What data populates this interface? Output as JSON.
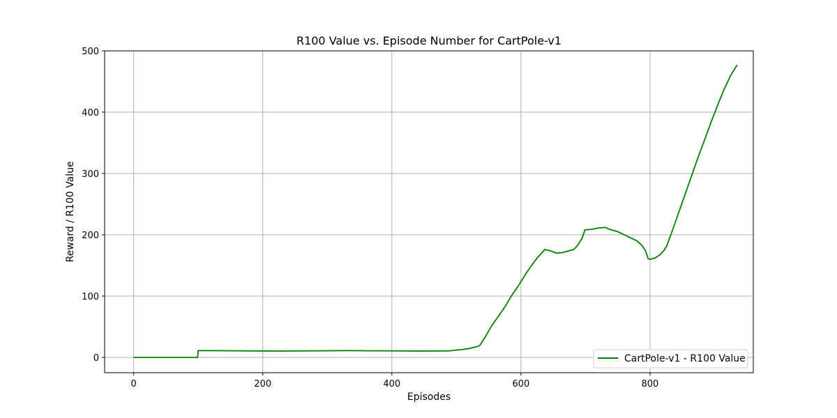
{
  "chart_data": {
    "type": "line",
    "title": "R100 Value vs. Episode Number for CartPole-v1",
    "xlabel": "Episodes",
    "ylabel": "Reward / R100 Value",
    "xlim": [
      -45,
      960
    ],
    "ylim": [
      -25,
      500
    ],
    "xticks": [
      0,
      200,
      400,
      600,
      800
    ],
    "yticks": [
      0,
      100,
      200,
      300,
      400,
      500
    ],
    "grid": true,
    "legend_position": "lower-right",
    "series": [
      {
        "name": "CartPole-v1 - R100 Value",
        "color": "#008000",
        "points": [
          [
            0,
            0
          ],
          [
            50,
            0
          ],
          [
            99,
            0
          ],
          [
            100,
            11
          ],
          [
            120,
            11
          ],
          [
            150,
            10.8
          ],
          [
            180,
            10.6
          ],
          [
            200,
            10.5
          ],
          [
            230,
            10.3
          ],
          [
            260,
            10.6
          ],
          [
            300,
            10.8
          ],
          [
            320,
            11
          ],
          [
            340,
            11
          ],
          [
            360,
            10.8
          ],
          [
            400,
            10.7
          ],
          [
            430,
            10.4
          ],
          [
            460,
            10.5
          ],
          [
            490,
            10.7
          ],
          [
            500,
            12
          ],
          [
            510,
            13
          ],
          [
            520,
            14.5
          ],
          [
            530,
            17
          ],
          [
            536,
            19
          ],
          [
            545,
            34
          ],
          [
            555,
            52
          ],
          [
            565,
            67
          ],
          [
            575,
            82
          ],
          [
            585,
            100
          ],
          [
            595,
            115
          ],
          [
            605,
            132
          ],
          [
            615,
            148
          ],
          [
            625,
            162
          ],
          [
            632,
            170
          ],
          [
            637,
            176
          ],
          [
            645,
            174
          ],
          [
            655,
            170
          ],
          [
            665,
            171
          ],
          [
            675,
            174
          ],
          [
            682,
            176
          ],
          [
            688,
            183
          ],
          [
            695,
            195
          ],
          [
            699,
            208
          ],
          [
            710,
            209
          ],
          [
            720,
            211
          ],
          [
            730,
            212
          ],
          [
            740,
            208
          ],
          [
            750,
            205
          ],
          [
            760,
            200
          ],
          [
            770,
            195
          ],
          [
            780,
            190
          ],
          [
            788,
            182
          ],
          [
            793,
            174
          ],
          [
            797,
            161
          ],
          [
            800,
            160
          ],
          [
            808,
            162
          ],
          [
            815,
            167
          ],
          [
            822,
            175
          ],
          [
            826,
            182
          ],
          [
            835,
            208
          ],
          [
            845,
            238
          ],
          [
            855,
            268
          ],
          [
            865,
            298
          ],
          [
            875,
            328
          ],
          [
            885,
            356
          ],
          [
            895,
            385
          ],
          [
            905,
            412
          ],
          [
            915,
            438
          ],
          [
            925,
            460
          ],
          [
            935,
            477
          ]
        ]
      }
    ]
  }
}
